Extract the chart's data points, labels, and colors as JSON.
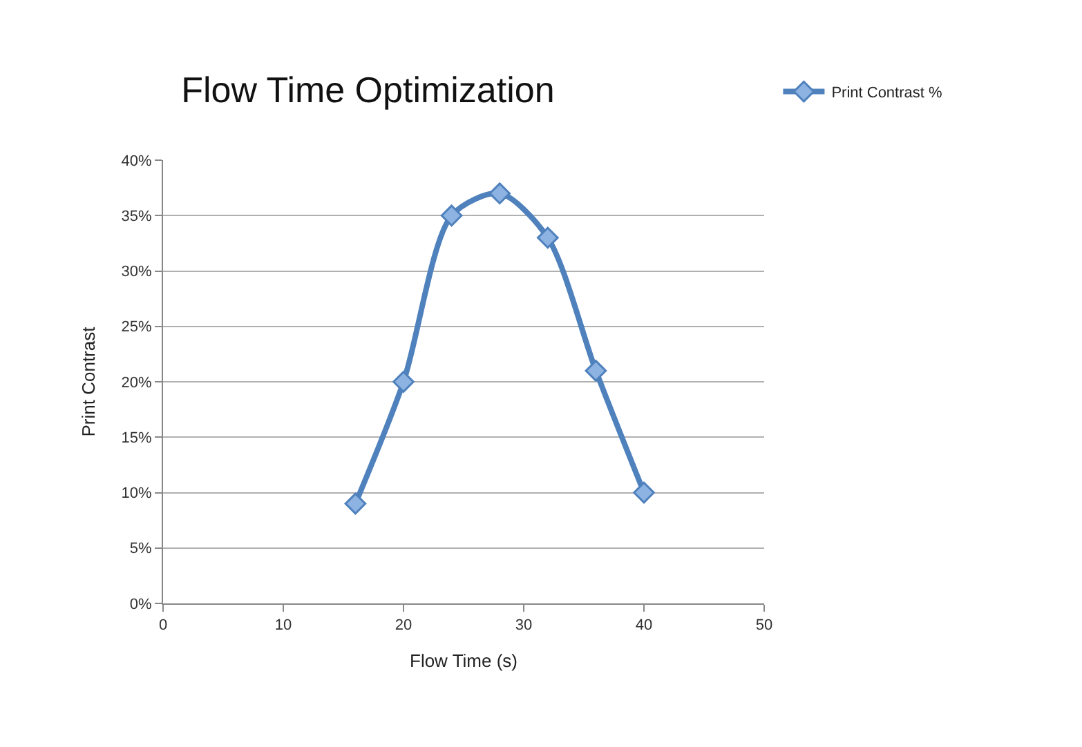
{
  "chart_data": {
    "type": "line",
    "title": "Flow Time Optimization",
    "xlabel": "Flow Time (s)",
    "ylabel": "Print Contrast",
    "x": [
      16,
      20,
      24,
      28,
      32,
      36,
      40
    ],
    "series": [
      {
        "name": "Print Contrast %",
        "color": "#4f81bd",
        "values": [
          9,
          20,
          35,
          37,
          33,
          21,
          10
        ]
      }
    ],
    "xlim": [
      0,
      50
    ],
    "xticks": [
      0,
      10,
      20,
      30,
      40,
      50
    ],
    "ylim": [
      0,
      40
    ],
    "yticks": [
      {
        "value": 0,
        "label": "0%"
      },
      {
        "value": 5,
        "label": "5%"
      },
      {
        "value": 10,
        "label": "10%"
      },
      {
        "value": 15,
        "label": "15%"
      },
      {
        "value": 20,
        "label": "20%"
      },
      {
        "value": 25,
        "label": "25%"
      },
      {
        "value": 30,
        "label": "30%"
      },
      {
        "value": 35,
        "label": "35%"
      },
      {
        "value": 40,
        "label": "40%"
      }
    ],
    "grid": "y",
    "legend": "top right",
    "marker": "diamond",
    "line_style": "solid"
  }
}
